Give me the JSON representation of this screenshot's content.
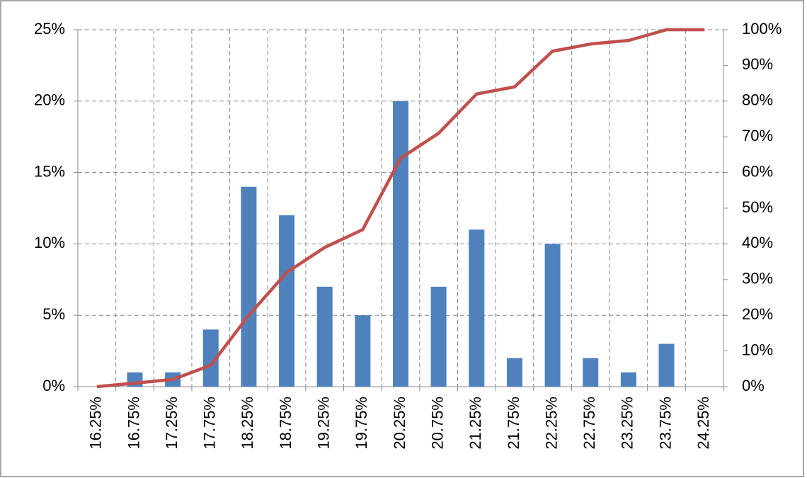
{
  "chart_data": {
    "type": "bar_line",
    "categories": [
      "16.25%",
      "16.75%",
      "17.25%",
      "17.75%",
      "18.25%",
      "18.75%",
      "19.25%",
      "19.75%",
      "20.25%",
      "20.75%",
      "21.25%",
      "21.75%",
      "22.25%",
      "22.75%",
      "23.25%",
      "23.75%",
      "24.25%"
    ],
    "series": [
      {
        "type": "bar",
        "color": "#4f81bd",
        "values": [
          0,
          1,
          1,
          4,
          14,
          12,
          7,
          5,
          20,
          7,
          11,
          2,
          10,
          2,
          1,
          3,
          0
        ]
      },
      {
        "type": "line",
        "axis": "y2",
        "color": "#c0504d",
        "values": [
          0,
          1,
          2,
          6,
          20,
          32,
          39,
          44,
          64,
          71,
          82,
          84,
          94,
          96,
          97,
          100,
          100
        ]
      }
    ],
    "ylim": [
      0,
      25
    ],
    "yticks": [
      {
        "value": 0,
        "label": "0%"
      },
      {
        "value": 5,
        "label": "5%"
      },
      {
        "value": 10,
        "label": "10%"
      },
      {
        "value": 15,
        "label": "15%"
      },
      {
        "value": 20,
        "label": "20%"
      },
      {
        "value": 25,
        "label": "25%"
      }
    ],
    "y2lim": [
      0,
      100
    ],
    "y2ticks": [
      {
        "value": 0,
        "label": "0%"
      },
      {
        "value": 10,
        "label": "10%"
      },
      {
        "value": 20,
        "label": "20%"
      },
      {
        "value": 30,
        "label": "30%"
      },
      {
        "value": 40,
        "label": "40%"
      },
      {
        "value": 50,
        "label": "50%"
      },
      {
        "value": 60,
        "label": "60%"
      },
      {
        "value": 70,
        "label": "70%"
      },
      {
        "value": 80,
        "label": "80%"
      },
      {
        "value": 90,
        "label": "90%"
      },
      {
        "value": 100,
        "label": "100%"
      }
    ],
    "grid": true
  }
}
